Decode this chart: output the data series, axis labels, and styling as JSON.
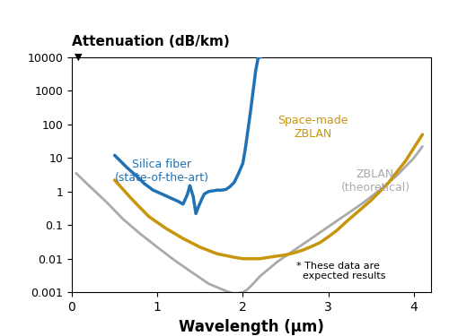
{
  "title": "Attenuation (dB/km)",
  "xlabel": "Wavelength (μm)",
  "xlim": [
    0,
    4.2
  ],
  "ylim": [
    0.001,
    10000
  ],
  "bg_color": "#ffffff",
  "silica_color": "#2171b5",
  "zblan_space_color": "#c8960c",
  "zblan_theory_color": "#aaaaaa",
  "silica_label": "Silica fiber\n(state-of-the-art)",
  "zblan_space_label": "Space-made\nZBLAN",
  "zblan_theory_label": "ZBLAN\n(theoretical)",
  "note": "* These data are\n  expected results",
  "silica_x": [
    0.5,
    0.65,
    0.75,
    0.85,
    0.95,
    1.05,
    1.15,
    1.25,
    1.3,
    1.35,
    1.38,
    1.42,
    1.45,
    1.48,
    1.52,
    1.55,
    1.6,
    1.65,
    1.7,
    1.75,
    1.8,
    1.85,
    1.9,
    1.95,
    2.0,
    2.03,
    2.06,
    2.09,
    2.12,
    2.15,
    2.18,
    2.21
  ],
  "silica_y": [
    12.0,
    5.0,
    3.0,
    1.7,
    1.1,
    0.85,
    0.65,
    0.5,
    0.42,
    0.8,
    1.5,
    0.7,
    0.22,
    0.35,
    0.6,
    0.85,
    1.0,
    1.05,
    1.1,
    1.1,
    1.15,
    1.4,
    1.9,
    3.5,
    7.0,
    20.0,
    70.0,
    250.0,
    1000.0,
    4000.0,
    10000.0,
    10000.0
  ],
  "zblan_space_x": [
    0.5,
    0.7,
    0.9,
    1.1,
    1.3,
    1.5,
    1.7,
    1.9,
    2.0,
    2.1,
    2.2,
    2.3,
    2.4,
    2.5,
    2.6,
    2.7,
    2.8,
    2.9,
    3.0,
    3.1,
    3.2,
    3.3,
    3.5,
    3.7,
    3.9,
    4.1
  ],
  "zblan_space_y": [
    2.2,
    0.6,
    0.18,
    0.08,
    0.04,
    0.022,
    0.014,
    0.011,
    0.01,
    0.01,
    0.01,
    0.011,
    0.012,
    0.013,
    0.015,
    0.018,
    0.023,
    0.03,
    0.045,
    0.07,
    0.12,
    0.2,
    0.55,
    1.8,
    8.0,
    50.0
  ],
  "zblan_theory_x": [
    0.05,
    0.2,
    0.4,
    0.6,
    0.8,
    1.0,
    1.2,
    1.4,
    1.6,
    1.8,
    1.9,
    2.0,
    2.05,
    2.1,
    2.2,
    2.4,
    2.6,
    2.8,
    3.0,
    3.2,
    3.4,
    3.6,
    3.8,
    4.0,
    4.1
  ],
  "zblan_theory_y": [
    3.5,
    1.5,
    0.5,
    0.15,
    0.055,
    0.022,
    0.009,
    0.004,
    0.0018,
    0.0011,
    0.0009,
    0.001,
    0.0012,
    0.0016,
    0.003,
    0.008,
    0.018,
    0.04,
    0.09,
    0.2,
    0.45,
    1.1,
    3.0,
    10.0,
    22.0
  ],
  "yticks": [
    0.001,
    0.01,
    0.1,
    1,
    10,
    100,
    1000,
    10000
  ],
  "yticklabels": [
    "0.001",
    "0.01",
    "0.1",
    "1",
    "10",
    "100",
    "1000",
    "10000"
  ],
  "xticks": [
    0,
    1,
    2,
    3,
    4
  ],
  "xticklabels": [
    "0",
    "1",
    "2",
    "3",
    "4"
  ]
}
